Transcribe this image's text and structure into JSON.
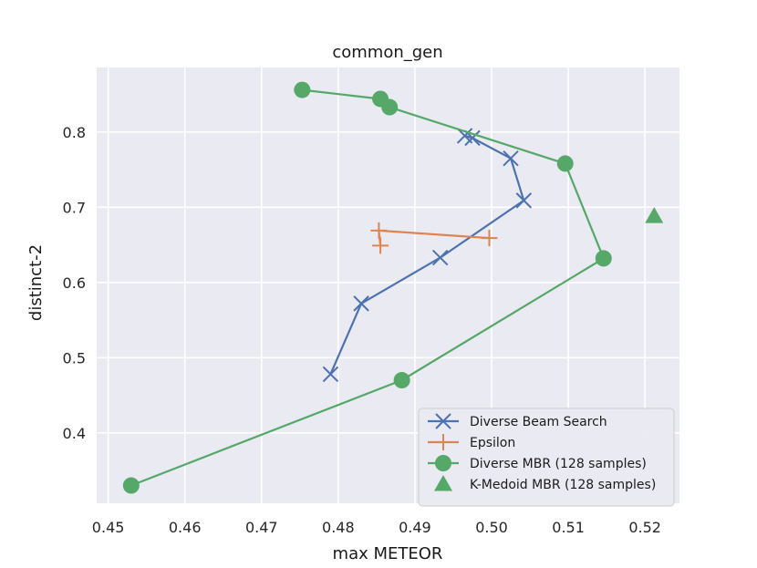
{
  "chart_data": {
    "type": "line",
    "title": "common_gen",
    "xlabel": "max METEOR",
    "ylabel": "distinct-2",
    "xlim": [
      0.4485,
      0.5245
    ],
    "ylim": [
      0.3064,
      0.8858
    ],
    "xticks": [
      0.45,
      0.46,
      0.47,
      0.48,
      0.49,
      0.5,
      0.51,
      0.52
    ],
    "xtick_labels": [
      "0.45",
      "0.46",
      "0.47",
      "0.48",
      "0.49",
      "0.50",
      "0.51",
      "0.52"
    ],
    "yticks": [
      0.4,
      0.5,
      0.6,
      0.7,
      0.8
    ],
    "ytick_labels": [
      "0.4",
      "0.5",
      "0.6",
      "0.7",
      "0.8"
    ],
    "grid": true,
    "background": "#eaeaf2",
    "legend_position": "lower-right",
    "series": [
      {
        "name": "Diverse Beam Search",
        "color": "#4c72b0",
        "marker": "x",
        "points": [
          [
            0.479,
            0.478
          ],
          [
            0.483,
            0.572
          ],
          [
            0.4933,
            0.633
          ],
          [
            0.5042,
            0.709
          ],
          [
            0.5025,
            0.765
          ],
          [
            0.4975,
            0.792
          ],
          [
            0.4965,
            0.795
          ]
        ]
      },
      {
        "name": "Epsilon",
        "color": "#dd8452",
        "marker": "+",
        "points": [
          [
            0.4855,
            0.649
          ],
          [
            0.4853,
            0.669
          ],
          [
            0.4997,
            0.659
          ]
        ]
      },
      {
        "name": "Diverse MBR (128 samples)",
        "color": "#55a868",
        "marker": "circle",
        "points": [
          [
            0.453,
            0.33
          ],
          [
            0.4883,
            0.47
          ],
          [
            0.5146,
            0.632
          ],
          [
            0.5096,
            0.758
          ],
          [
            0.4867,
            0.833
          ],
          [
            0.4855,
            0.844
          ],
          [
            0.4753,
            0.856
          ]
        ]
      },
      {
        "name": "K-Medoid MBR (128 samples)",
        "color": "#55a868",
        "marker": "triangle",
        "points": [
          [
            0.5212,
            0.688
          ]
        ]
      }
    ]
  }
}
